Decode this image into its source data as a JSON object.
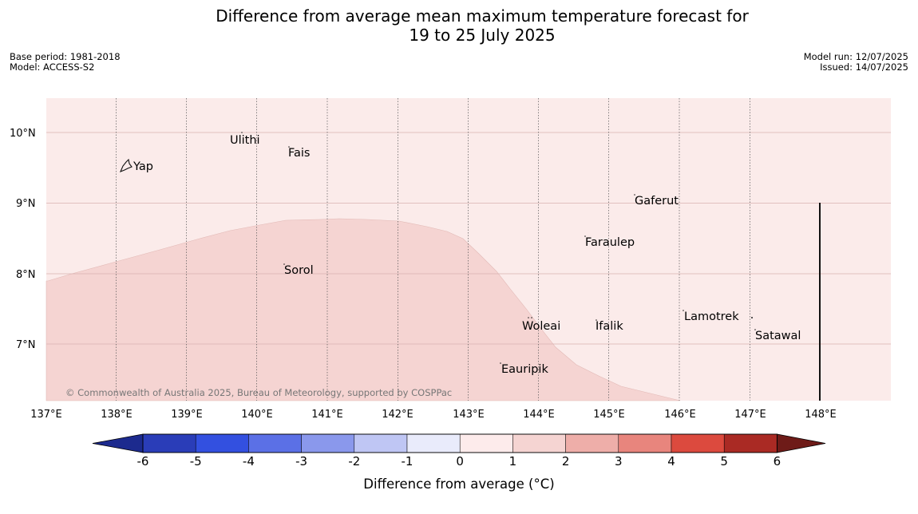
{
  "title": {
    "line1": "Difference from average mean maximum temperature forecast for",
    "line2": "19 to 25 July 2025"
  },
  "meta": {
    "base_period": "Base period: 1981-2018",
    "model": "Model: ACCESS-S2",
    "model_run": "Model run: 12/07/2025",
    "issued": "Issued: 14/07/2025"
  },
  "map": {
    "lon_labels": [
      "137°E",
      "138°E",
      "139°E",
      "140°E",
      "141°E",
      "142°E",
      "143°E",
      "144°E",
      "145°E",
      "146°E",
      "147°E",
      "148°E"
    ],
    "lat_labels": [
      "10°N",
      "9°N",
      "8°N",
      "7°N"
    ],
    "places": {
      "yap": "Yap",
      "ulithi": "Ulithi",
      "fais": "Fais",
      "sorol": "Sorol",
      "gaferut": "Gaferut",
      "faraulep": "Faraulep",
      "woleai": "Woleai",
      "ifalik": "Ifalik",
      "lamotrek": "Lamotrek",
      "satawal": "Satawal",
      "eauripik": "Eauripik"
    },
    "copyright": "© Commonwealth of Australia 2025, Bureau of Meteorology, supported by COSPPac",
    "colors": {
      "anomaly_0_to_1": "#fbebea",
      "anomaly_1_to_2": "#f5d4d2"
    }
  },
  "colorbar": {
    "ticks": [
      "-6",
      "-5",
      "-4",
      "-3",
      "-2",
      "-1",
      "0",
      "1",
      "2",
      "3",
      "4",
      "5",
      "6"
    ],
    "label": "Difference from average (°C)",
    "colors": [
      "#1c2a8e",
      "#2a3db8",
      "#3350e0",
      "#5b70e6",
      "#8a98ec",
      "#bfc6f4",
      "#e9ebfb",
      "#fdebeb",
      "#f5d4d2",
      "#eeaea9",
      "#e8857d",
      "#dc4a3e",
      "#aa2a24",
      "#6e1b18"
    ]
  }
}
